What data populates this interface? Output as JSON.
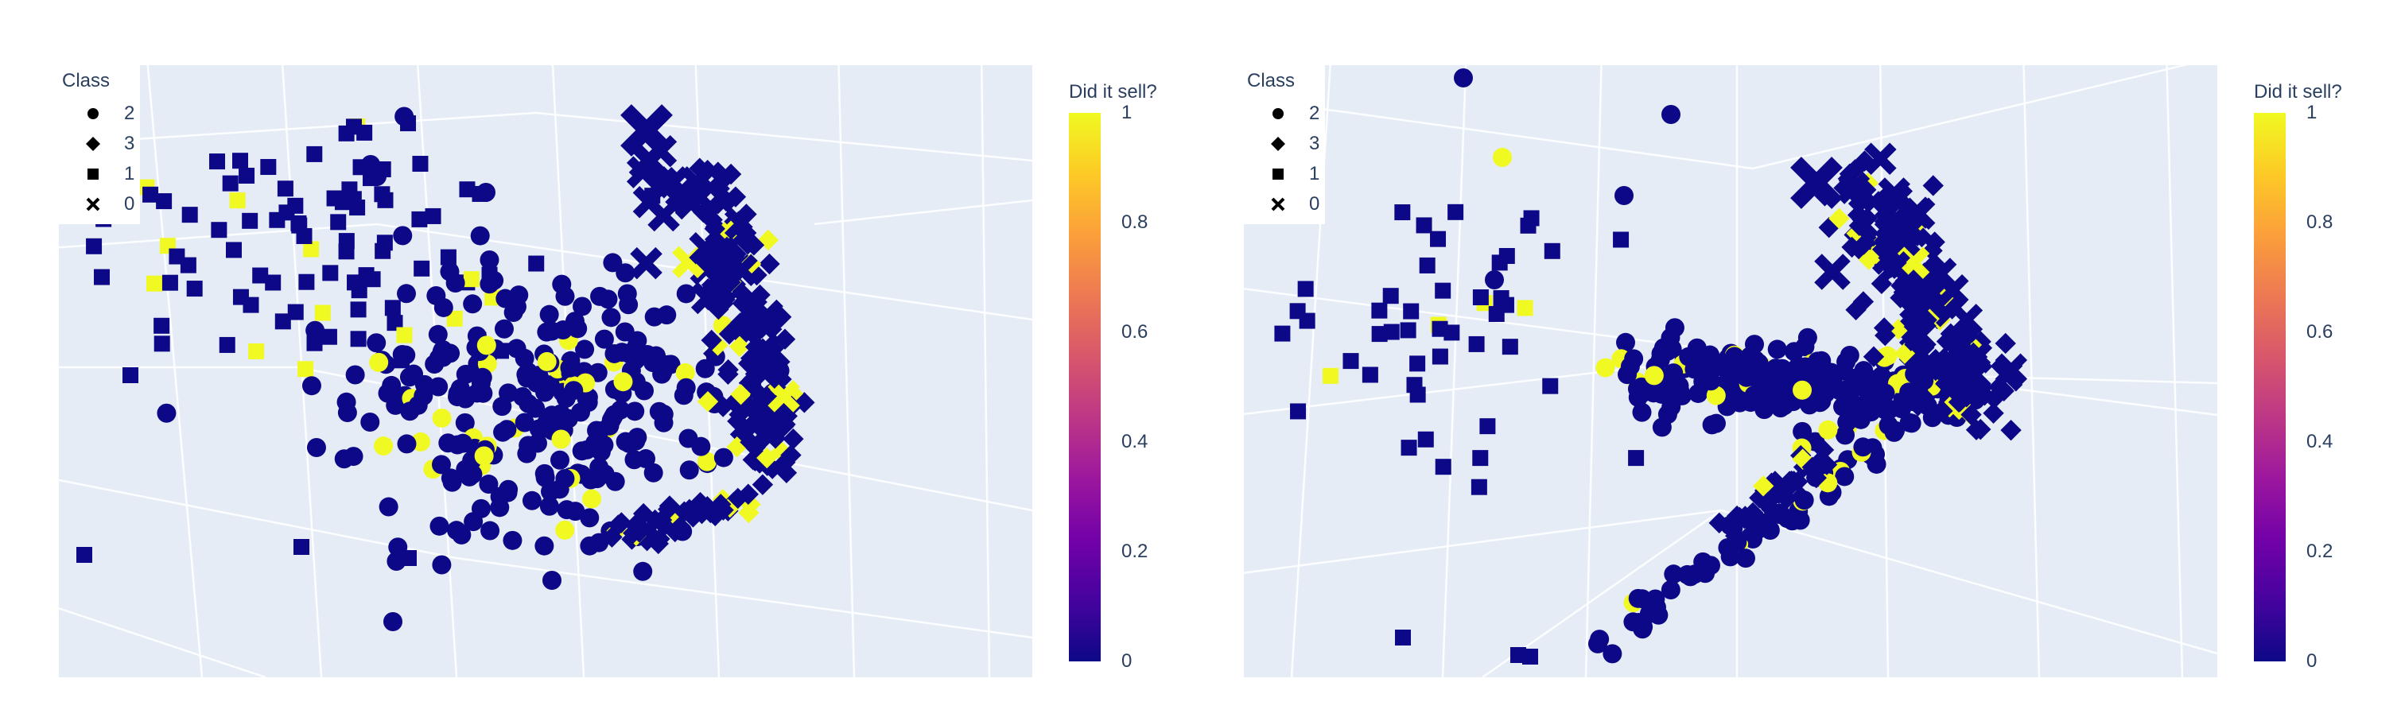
{
  "legend": {
    "title": "Class",
    "entries": [
      {
        "label": "2",
        "symbol": "circle"
      },
      {
        "label": "3",
        "symbol": "diamond"
      },
      {
        "label": "1",
        "symbol": "square"
      },
      {
        "label": "0",
        "symbol": "x"
      }
    ]
  },
  "colorbar": {
    "title": "Did it sell?",
    "ticks": [
      "1",
      "0.8",
      "0.6",
      "0.4",
      "0.2",
      "0"
    ],
    "colorscale": [
      "#0d0887",
      "#46039f",
      "#7201a8",
      "#9c179e",
      "#bd3786",
      "#d8576b",
      "#ed7953",
      "#fb9f3a",
      "#fdca26",
      "#f0f921"
    ]
  },
  "colors": {
    "scene_background": "#e5ecf6",
    "grid": "#ffffff",
    "not_sold": "#0d0887",
    "sold": "#f0f921",
    "text": "#2a3f5f"
  },
  "chart_data": [
    {
      "type": "scatter3d",
      "title": "",
      "marker_symbol_by": "Class",
      "marker_color_by": "Did it sell?",
      "color_range": [
        0,
        1
      ],
      "classes": [
        "2",
        "3",
        "1",
        "0"
      ],
      "approximate_counts": {
        "2": 320,
        "3": 210,
        "1": 140,
        "0": 45
      },
      "sold_fraction_approx": 0.1
    },
    {
      "type": "scatter3d",
      "title": "",
      "marker_symbol_by": "Class",
      "marker_color_by": "Did it sell?",
      "color_range": [
        0,
        1
      ],
      "classes": [
        "2",
        "3",
        "1",
        "0"
      ],
      "approximate_counts": {
        "2": 320,
        "3": 210,
        "1": 140,
        "0": 45
      },
      "sold_fraction_approx": 0.1
    }
  ]
}
